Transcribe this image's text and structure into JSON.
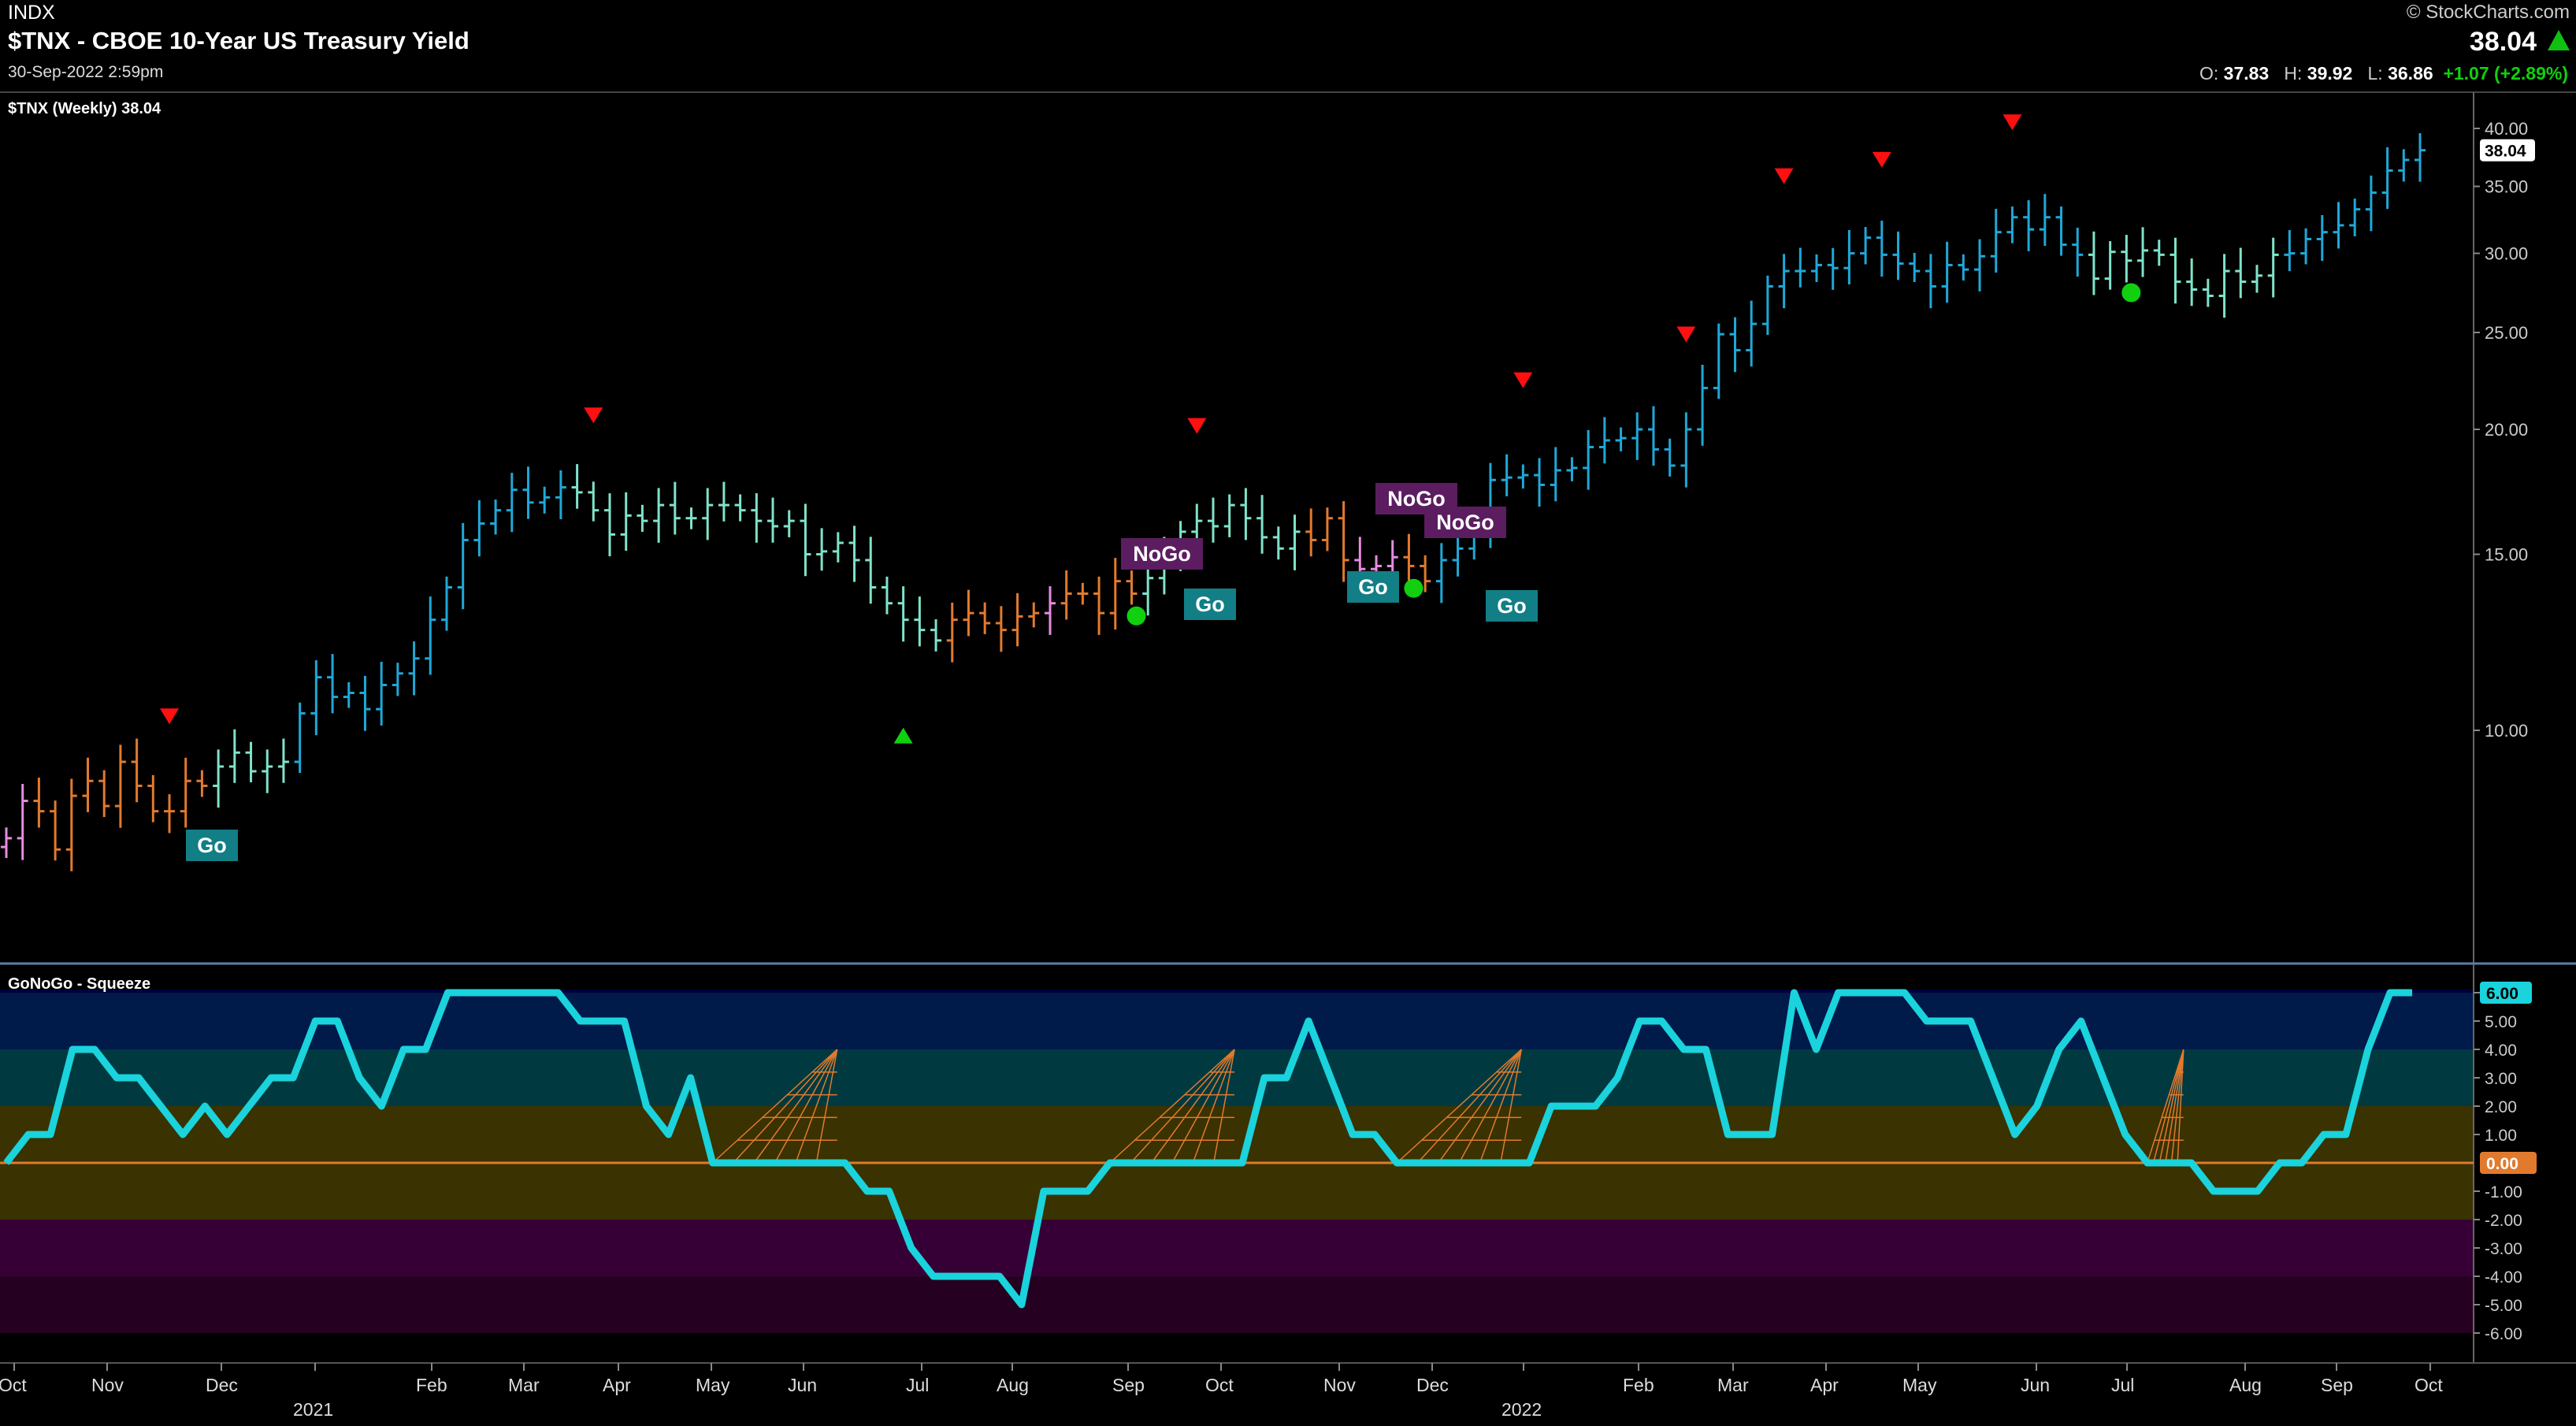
{
  "header": {
    "exchange": "INDX",
    "title": "$TNX - CBOE 10-Year US Treasury Yield",
    "timestamp": "30-Sep-2022 2:59pm",
    "copyright": "© StockCharts.com",
    "last": "38.04",
    "open_label": "O:",
    "open": "37.83",
    "high_label": "H:",
    "high": "39.92",
    "low_label": "L:",
    "low": "36.86",
    "change": "+1.07 (+2.89%)"
  },
  "colors": {
    "background": "#000000",
    "go_strong": "#1fa8d8",
    "go_weak": "#7fe3c9",
    "nogo_weak": "#e27a2e",
    "nogo_strong": "#e78be0",
    "oscillator": "#1ad3dc",
    "squeeze": "#e27a2e",
    "up_signal": "#10d010",
    "down_signal": "#ff1010"
  },
  "chart_data": [
    {
      "type": "ohlc",
      "title": "$TNX (Weekly) 38.04",
      "x_axis": [
        "Oct",
        "Nov",
        "Dec",
        "2021",
        "Feb",
        "Mar",
        "Apr",
        "May",
        "Jun",
        "Jul",
        "Aug",
        "Sep",
        "Oct",
        "Nov",
        "Dec",
        "2022",
        "Feb",
        "Mar",
        "Apr",
        "May",
        "Jun",
        "Jul",
        "Aug",
        "Sep",
        "Oct"
      ],
      "y_scale": "log",
      "y_ticks": [
        "40.00",
        "35.00",
        "30.00",
        "25.00",
        "20.00",
        "15.00",
        "10.00"
      ],
      "ylim": [
        7.0,
        42.0
      ],
      "last_value_label": "38.04",
      "close_series": [
        7.8,
        8.5,
        8.3,
        7.6,
        8.6,
        8.9,
        8.4,
        9.3,
        8.8,
        8.3,
        8.3,
        8.9,
        8.8,
        9.2,
        9.5,
        9.1,
        9.2,
        9.3,
        10.4,
        11.3,
        10.8,
        10.9,
        10.5,
        11.1,
        11.4,
        11.8,
        12.9,
        13.9,
        15.5,
        16.1,
        16.6,
        17.4,
        16.9,
        17.1,
        17.5,
        17.3,
        16.6,
        15.7,
        16.4,
        16.2,
        16.8,
        16.3,
        16.3,
        16.8,
        16.8,
        16.6,
        16.2,
        16.0,
        16.2,
        15.0,
        15.1,
        15.4,
        14.8,
        13.9,
        13.4,
        12.9,
        12.6,
        12.3,
        12.9,
        13.1,
        12.8,
        12.6,
        13.0,
        13.1,
        13.4,
        13.7,
        13.7,
        13.1,
        14.1,
        13.7,
        14.2,
        14.8,
        15.8,
        16.2,
        16.0,
        16.8,
        16.3,
        15.6,
        15.2,
        15.8,
        15.5,
        16.3,
        14.8,
        14.5,
        14.6,
        14.9,
        14.6,
        14.1,
        14.8,
        15.2,
        16.0,
        17.8,
        17.9,
        18.0,
        17.6,
        18.2,
        18.3,
        19.2,
        19.5,
        19.6,
        20.0,
        19.1,
        18.4,
        20.0,
        22.0,
        24.9,
        24.0,
        25.5,
        27.8,
        28.8,
        28.8,
        29.2,
        29.0,
        30.0,
        31.1,
        29.9,
        29.3,
        28.8,
        27.8,
        29.2,
        28.9,
        29.8,
        31.5,
        32.6,
        31.7,
        32.6,
        30.6,
        29.9,
        28.3,
        30.1,
        29.5,
        30.2,
        29.9,
        28.1,
        27.6,
        27.2,
        28.8,
        28.1,
        28.5,
        29.9,
        30.0,
        31.0,
        31.5,
        32.0,
        33.2,
        34.5,
        36.3,
        37.2,
        38.04
      ],
      "signals": [
        {
          "type": "down",
          "week": 10
        },
        {
          "type": "down",
          "week": 36
        },
        {
          "type": "up",
          "week": 55
        },
        {
          "type": "down",
          "week": 73
        },
        {
          "type": "down",
          "week": 93
        },
        {
          "type": "down",
          "week": 103
        },
        {
          "type": "down",
          "week": 109
        },
        {
          "type": "down",
          "week": 115
        },
        {
          "type": "down",
          "week": 123
        }
      ],
      "labels": [
        "Go",
        "NoGo",
        "Go",
        "Go",
        "NoGo",
        "NoGo",
        "Go"
      ],
      "dots": [
        {
          "week": 69
        },
        {
          "week": 86
        },
        {
          "week": 130
        }
      ]
    },
    {
      "type": "line",
      "title": "GoNoGo - Squeeze",
      "y_ticks": [
        "6.00",
        "5.00",
        "4.00",
        "3.00",
        "2.00",
        "1.00",
        "-1.00",
        "-2.00",
        "-3.00",
        "-4.00",
        "-5.00",
        "-6.00"
      ],
      "ylim": [
        -6,
        6
      ],
      "last_value_label": "6.00",
      "zero_label": "0.00",
      "series": [
        {
          "values": [
            0,
            1,
            1,
            4,
            4,
            3,
            3,
            2,
            1,
            2,
            1,
            2,
            3,
            3,
            5,
            5,
            3,
            2,
            4,
            4,
            6,
            6,
            6,
            6,
            6,
            6,
            5,
            5,
            5,
            2,
            1,
            3,
            0,
            0,
            0,
            0,
            0,
            0,
            0,
            -1,
            -1,
            -3,
            -4,
            -4,
            -4,
            -4,
            -5,
            -1,
            -1,
            -1,
            0,
            0,
            0,
            0,
            0,
            0,
            0,
            3,
            3,
            5,
            3,
            1,
            1,
            0,
            0,
            0,
            0,
            0,
            0,
            0,
            2,
            2,
            2,
            3,
            5,
            5,
            4,
            4,
            1,
            1,
            1,
            6,
            4,
            6,
            6,
            6,
            6,
            5,
            5,
            5,
            3,
            1,
            2,
            4,
            5,
            3,
            1,
            0,
            0,
            0,
            -1,
            -1,
            -1,
            0,
            0,
            1,
            1,
            4,
            6,
            6
          ]
        }
      ]
    }
  ]
}
